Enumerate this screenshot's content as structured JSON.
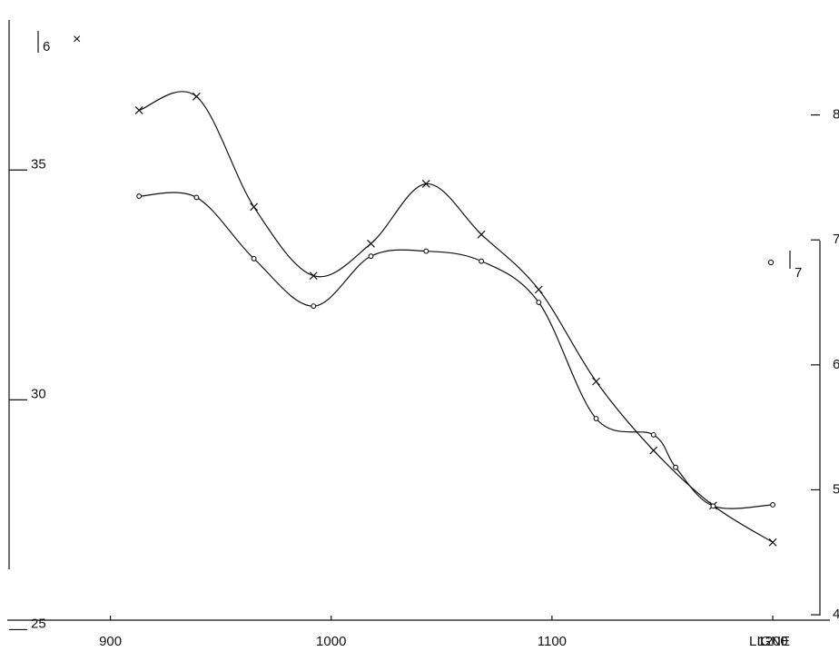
{
  "chart_data": {
    "type": "line",
    "title": "",
    "xlabel": "LIGNE",
    "x_ticks": [
      900,
      1000,
      1100,
      1200
    ],
    "xlim": [
      850,
      1230
    ],
    "left_axis": {
      "label_main": "I",
      "label_sub": "6",
      "marker_glyph": "×",
      "ticks": [
        25,
        30,
        35
      ],
      "ylim": [
        24.1,
        38.7
      ]
    },
    "right_axis": {
      "label_marker": "∘",
      "label_main": "I",
      "label_sub": "7",
      "ticks": [
        4,
        5,
        6,
        7,
        8
      ],
      "tick_labels": [
        "4",
        "5",
        "6",
        "7",
        "8"
      ],
      "ylim": [
        3.55,
        8.92
      ]
    },
    "series": [
      {
        "axis": "left",
        "marker": "cross",
        "x": [
          913,
          939,
          965,
          992,
          1018,
          1043,
          1068,
          1094,
          1120,
          1146,
          1173,
          1200
        ],
        "y": [
          36.3,
          36.6,
          34.2,
          32.7,
          33.4,
          34.7,
          33.6,
          32.4,
          30.4,
          28.9,
          27.7,
          26.9
        ]
      },
      {
        "axis": "right",
        "marker": "circle",
        "x": [
          913,
          939,
          965,
          992,
          1018,
          1043,
          1068,
          1094,
          1120,
          1146,
          1156,
          1173,
          1200
        ],
        "y": [
          7.35,
          7.34,
          6.85,
          6.47,
          6.87,
          6.91,
          6.83,
          6.5,
          5.57,
          5.44,
          5.18,
          4.87,
          4.88
        ]
      }
    ]
  }
}
